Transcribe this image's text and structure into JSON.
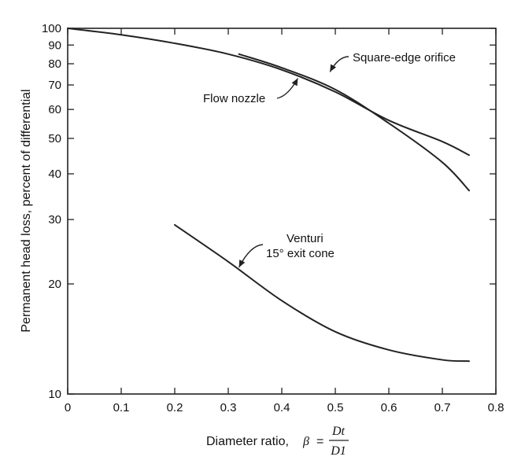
{
  "chart_data": {
    "type": "line",
    "title": "",
    "xlabel": "Diameter ratio,",
    "xlabel_symbol": "β",
    "xlabel_equals": "=",
    "xlabel_numerator": "Dt",
    "xlabel_denominator": "D1",
    "ylabel": "Permanent head loss, percent of differential",
    "xlim": [
      0,
      0.8
    ],
    "ylim": [
      10,
      100
    ],
    "yscale": "log",
    "x_ticks": [
      0,
      0.1,
      0.2,
      0.3,
      0.4,
      0.5,
      0.6,
      0.7,
      0.8
    ],
    "x_tick_labels": [
      "0",
      "0.1",
      "0.2",
      "0.3",
      "0.4",
      "0.5",
      "0.6",
      "0.7",
      "0.8"
    ],
    "y_ticks": [
      10,
      20,
      30,
      40,
      50,
      60,
      70,
      80,
      90,
      100
    ],
    "y_tick_labels": [
      "10",
      "20",
      "30",
      "40",
      "50",
      "60",
      "70",
      "80",
      "90",
      "100"
    ],
    "grid": false,
    "line_color": "#222222",
    "series": [
      {
        "name": "Square-edge orifice",
        "x": [
          0,
          0.1,
          0.2,
          0.3,
          0.4,
          0.5,
          0.6,
          0.7,
          0.75
        ],
        "y": [
          100,
          96,
          91,
          85,
          77,
          67,
          56,
          49,
          45
        ]
      },
      {
        "name": "Flow nozzle",
        "x": [
          0.32,
          0.4,
          0.5,
          0.6,
          0.7,
          0.75
        ],
        "y": [
          85,
          78,
          68,
          55,
          43,
          36
        ]
      },
      {
        "name": "Venturi 15° exit cone",
        "x": [
          0.2,
          0.3,
          0.4,
          0.5,
          0.6,
          0.7,
          0.75
        ],
        "y": [
          29,
          23,
          18,
          14.8,
          13.2,
          12.4,
          12.3
        ]
      }
    ],
    "annotations": [
      {
        "series": 0,
        "lines": [
          "Square-edge orifice"
        ],
        "arrow_to": [
          0.49,
          76
        ]
      },
      {
        "series": 1,
        "lines": [
          "Flow nozzle"
        ],
        "arrow_to": [
          0.43,
          73
        ]
      },
      {
        "series": 2,
        "lines": [
          "Venturi",
          "15° exit cone"
        ],
        "arrow_to": [
          0.32,
          22.2
        ]
      }
    ]
  }
}
